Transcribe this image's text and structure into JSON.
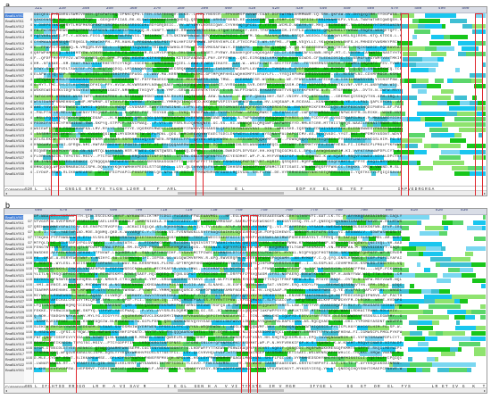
{
  "figure": {
    "panels": [
      {
        "letter": "a",
        "ruler_numbers": [
          "321",
          "330",
          "340",
          "350",
          "360",
          "370",
          "380",
          "390",
          "400",
          "410",
          "420",
          "430",
          "440",
          "450",
          "460",
          "470",
          "480",
          "490",
          "500"
        ],
        "rows": [
          {
            "name": "BnaBLV903",
            "pos": "",
            "hl": true
          },
          {
            "name": "BnaBLV911",
            "pos": "4"
          },
          {
            "name": "BnaBLV912",
            "pos": "4"
          },
          {
            "name": "BnaBLV913",
            "pos": "4"
          },
          {
            "name": "BnaBLV914",
            "pos": "4"
          },
          {
            "name": "BnaBLV916",
            "pos": "4"
          },
          {
            "name": "BnaBLV917",
            "pos": "4"
          },
          {
            "name": "BnaBLV918",
            "pos": "4"
          },
          {
            "name": "BnaBLV901",
            "pos": "4"
          },
          {
            "name": "BnaBLV904",
            "pos": "4"
          },
          {
            "name": "BnaBLV905",
            "pos": "4"
          },
          {
            "name": "BnaBLV907",
            "pos": "4"
          },
          {
            "name": "BnaBLV906",
            "pos": "4"
          },
          {
            "name": "BnaBLV908",
            "pos": "4"
          },
          {
            "name": "BnaBLV909",
            "pos": "4"
          },
          {
            "name": "BnaBLV910",
            "pos": "4"
          },
          {
            "name": "BnaBLV902",
            "pos": "4"
          },
          {
            "name": "BnaBLV919",
            "pos": "4"
          },
          {
            "name": "BnaBLV920",
            "pos": "4"
          },
          {
            "name": "BnaBLV915",
            "pos": "4"
          },
          {
            "name": "BnaBLV921",
            "pos": "4"
          },
          {
            "name": "BnaBLV922",
            "pos": "4"
          },
          {
            "name": "BnaBLV923",
            "pos": "4"
          },
          {
            "name": "BnaBLV924",
            "pos": "4"
          },
          {
            "name": "BnaBLV925",
            "pos": "4"
          },
          {
            "name": "BnaBLV926",
            "pos": "4"
          },
          {
            "name": "BnaBLV927",
            "pos": "4"
          },
          {
            "name": "BnaBLV928",
            "pos": "4"
          },
          {
            "name": "BnaBLV929",
            "pos": "4"
          },
          {
            "name": "BnaBLV930",
            "pos": "4"
          }
        ],
        "consensus_label": "Consensus",
        "consensus_pos": "520",
        "consensus_seq": "L  LL    GNGLE ER FYS YLGN L20R E   F  ARL                 E L               EDP AV  EL  EE  YE F          IAPVEDRGRGA"
      },
      {
        "letter": "b",
        "ruler_numbers": [
          "660",
          "670",
          "680",
          "690",
          "700",
          "710",
          "720",
          "730",
          "740",
          "750",
          "760",
          "770",
          "780",
          "790",
          "800",
          "810",
          "820",
          "830"
        ],
        "rows": [
          {
            "name": "BnaBLV903",
            "pos": "",
            "hl": true
          },
          {
            "name": "BnaBLV911",
            "pos": "97"
          },
          {
            "name": "BnaBLV912",
            "pos": "97"
          },
          {
            "name": "BnaBLV913",
            "pos": "97"
          },
          {
            "name": "BnaBLV914",
            "pos": "97"
          },
          {
            "name": "BnaBLV916",
            "pos": "97"
          },
          {
            "name": "BnaBLV902",
            "pos": "116"
          },
          {
            "name": "BnaBLV904",
            "pos": "116"
          },
          {
            "name": "BnaBLV905",
            "pos": "116"
          },
          {
            "name": "BnaBLV919",
            "pos": "116"
          },
          {
            "name": "BnaBLV920",
            "pos": "116"
          },
          {
            "name": "BnaBLV921",
            "pos": "116"
          },
          {
            "name": "BnaBLV923",
            "pos": "116"
          },
          {
            "name": "BnaBLV924",
            "pos": "116"
          },
          {
            "name": "BnaBLV925",
            "pos": "116"
          },
          {
            "name": "BnaBLV926",
            "pos": "116"
          },
          {
            "name": "BnaBLV927",
            "pos": "116"
          },
          {
            "name": "BnaBLV928",
            "pos": "116"
          },
          {
            "name": "BnaBLV929",
            "pos": "116"
          },
          {
            "name": "BnaBLV930",
            "pos": "116"
          },
          {
            "name": "BnaBLV906",
            "pos": "116"
          },
          {
            "name": "BnaBLV907",
            "pos": "116"
          },
          {
            "name": "BnaBLV908",
            "pos": "116"
          },
          {
            "name": "BnaBLV909",
            "pos": "116"
          },
          {
            "name": "BnaBLV910",
            "pos": "116"
          },
          {
            "name": "BnaBLV915",
            "pos": "116"
          },
          {
            "name": "BnaBLV917",
            "pos": "116"
          },
          {
            "name": "BnaBLV918",
            "pos": "116"
          },
          {
            "name": "BnaBLV922",
            "pos": "116"
          },
          {
            "name": "BnaBLV901",
            "pos": "116"
          }
        ],
        "consensus_label": "Consensus",
        "consensus_pos": "665",
        "consensus_seq": "L IFLHTSD RRDGQ  LR R  A VI SAV R      I G GL  GEN H A  V VI TYRSTG  IR V RGR    IFYGE L    GG  GT  QR  EL  FYS      LR ET IV G  K  T  RLK  ALVYE  G"
      }
    ]
  }
}
